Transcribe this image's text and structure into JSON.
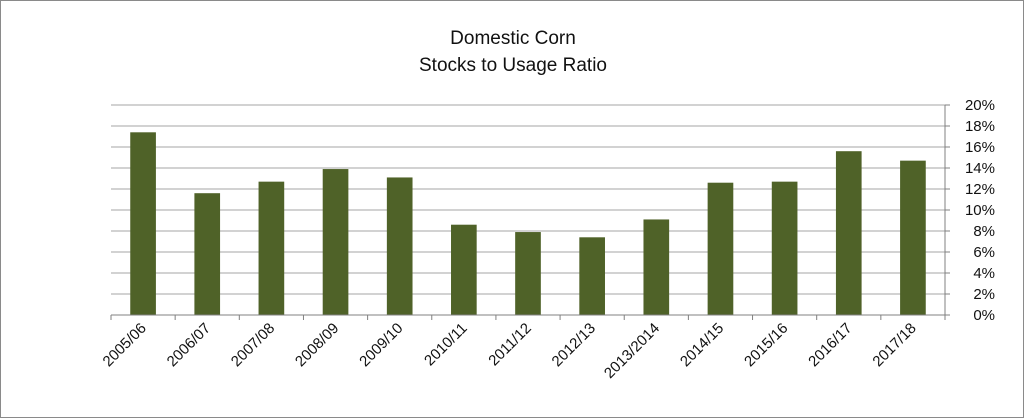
{
  "chart_data": {
    "type": "bar",
    "title": [
      "Domestic  Corn",
      "Stocks to Usage Ratio"
    ],
    "categories": [
      "2005/06",
      "2006/07",
      "2007/08",
      "2008/09",
      "2009/10",
      "2010/11",
      "2011/12",
      "2012/13",
      "2013/2014",
      "2014/15",
      "2015/16",
      "2016/17",
      "2017/18"
    ],
    "series": [
      {
        "values": [
          17.4,
          11.6,
          12.7,
          13.9,
          13.1,
          8.6,
          7.9,
          7.4,
          9.1,
          12.6,
          12.7,
          15.6,
          14.7
        ]
      }
    ],
    "y_ticks": [
      "0%",
      "2%",
      "4%",
      "6%",
      "8%",
      "10%",
      "12%",
      "14%",
      "16%",
      "18%",
      "20%"
    ],
    "ylim": [
      0,
      20
    ],
    "y_axis_side": "right",
    "y_unit": "%",
    "gridlines": true,
    "legend": "none",
    "bar_color": "#4f6228",
    "grid_color": "#a6a6a6"
  }
}
